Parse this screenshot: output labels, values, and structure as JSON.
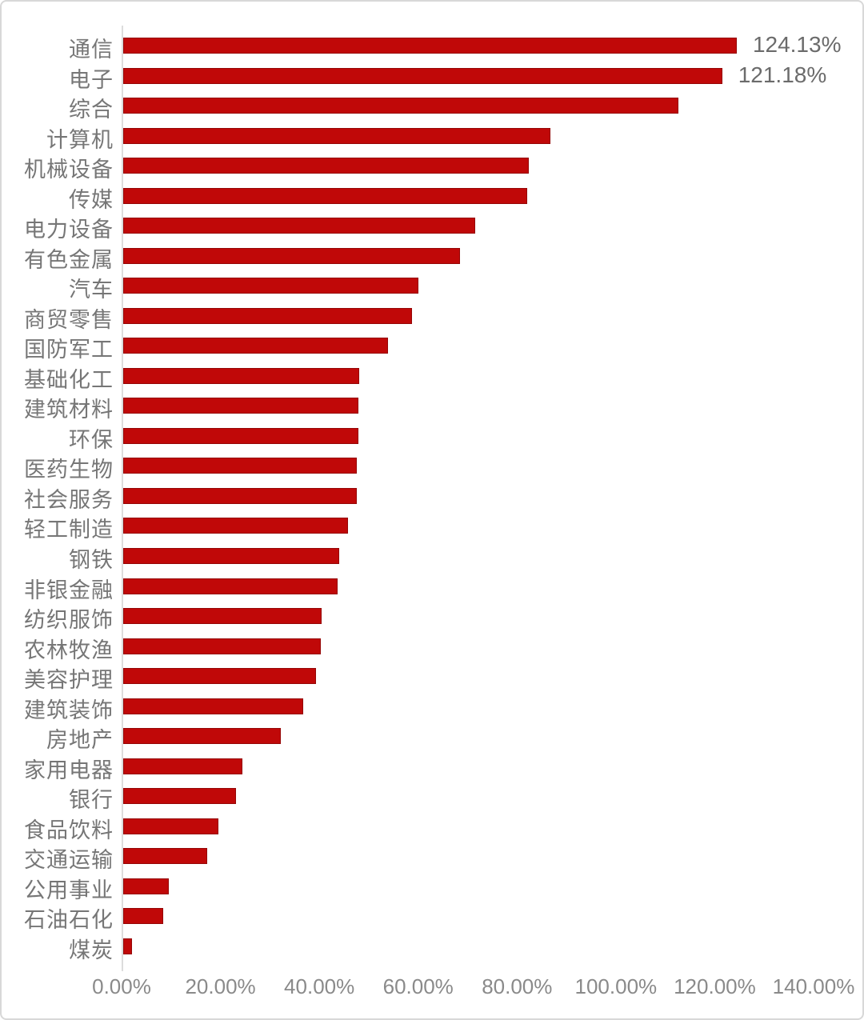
{
  "chart_data": {
    "type": "bar",
    "orientation": "horizontal",
    "title": "",
    "xlabel": "",
    "ylabel": "",
    "xlim": [
      0,
      140
    ],
    "grid": false,
    "legend": "none",
    "bar_color": "#c00808",
    "bar_border_color": "#950606",
    "label_color": "#767676",
    "tick_color": "#8a8a8a",
    "x_ticks": [
      "0.00%",
      "20.00%",
      "40.00%",
      "60.00%",
      "80.00%",
      "100.00%",
      "120.00%",
      "140.00%"
    ],
    "categories": [
      "通信",
      "电子",
      "综合",
      "计算机",
      "机械设备",
      "传媒",
      "电力设备",
      "有色金属",
      "汽车",
      "商贸零售",
      "国防军工",
      "基础化工",
      "建筑材料",
      "环保",
      "医药生物",
      "社会服务",
      "轻工制造",
      "钢铁",
      "非银金融",
      "纺织服饰",
      "农林牧渔",
      "美容护理",
      "建筑装饰",
      "房地产",
      "家用电器",
      "银行",
      "食品饮料",
      "交通运输",
      "公用事业",
      "石油石化",
      "煤炭"
    ],
    "values": [
      124.13,
      121.18,
      112.3,
      86.4,
      82.0,
      81.7,
      71.2,
      68.1,
      59.7,
      58.4,
      53.6,
      47.7,
      47.6,
      47.6,
      47.2,
      47.2,
      45.5,
      43.7,
      43.4,
      40.1,
      40.0,
      39.0,
      36.4,
      31.9,
      24.1,
      22.8,
      19.3,
      17.0,
      9.2,
      8.1,
      1.8
    ],
    "data_labels": {
      "0": "124.13%",
      "1": "121.18%"
    }
  }
}
